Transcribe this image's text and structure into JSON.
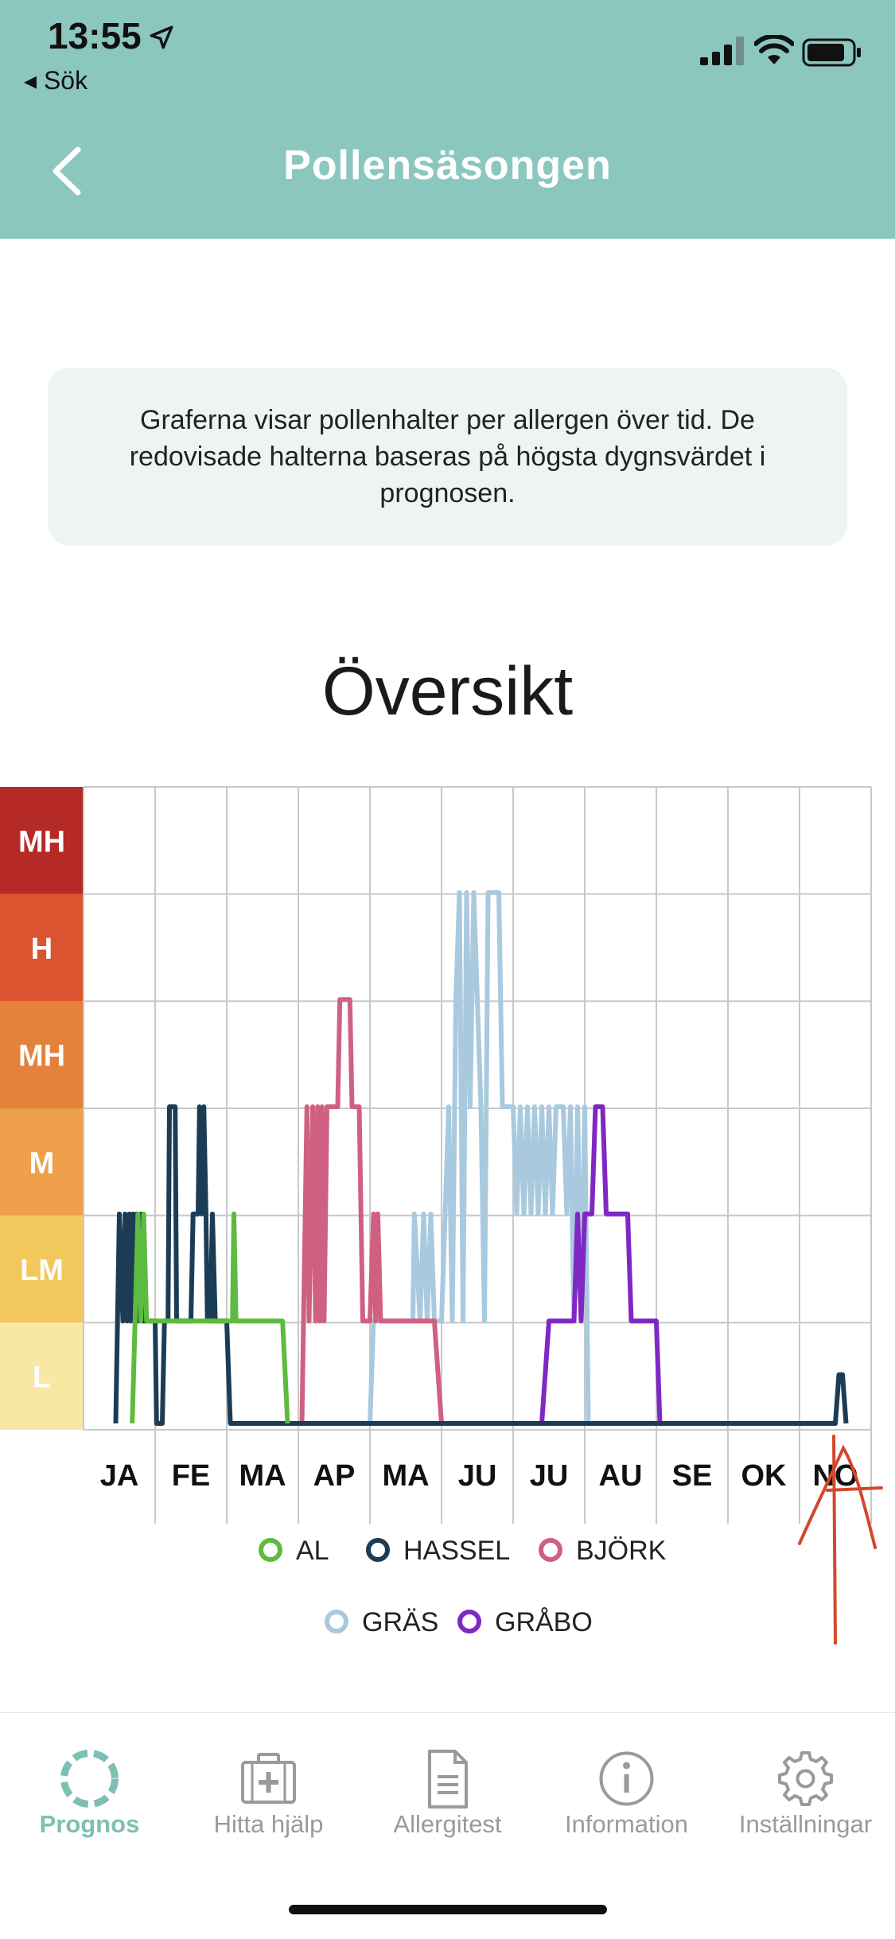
{
  "status_bar": {
    "time": "13:55",
    "back_app": "◂ Sök"
  },
  "header": {
    "title": "Pollensäsongen"
  },
  "info": {
    "text": "Graferna visar pollenhalter per allergen över tid. De redovisade halterna baseras på högsta dygnsvärdet i prognosen."
  },
  "section": {
    "title": "Översikt"
  },
  "chart_data": {
    "type": "line",
    "levels": [
      "L",
      "LM",
      "M",
      "MH",
      "H",
      "MH"
    ],
    "level_colors": [
      "#f9e7a4",
      "#f2c75c",
      "#eea04a",
      "#e4813a",
      "#d9542f",
      "#b52a26"
    ],
    "x_ticks": [
      "JA",
      "FE",
      "MA",
      "AP",
      "MA",
      "JU",
      "JU",
      "AU",
      "SE",
      "OK",
      "NO"
    ],
    "y_range": [
      0,
      6
    ],
    "grid": true,
    "legend_position": "bottom",
    "series": [
      {
        "name": "AL",
        "color": "#5dbb3f",
        "points": [
          [
            0.68,
            0
          ],
          [
            0.72,
            1
          ],
          [
            0.76,
            2
          ],
          [
            0.8,
            1
          ],
          [
            0.84,
            2
          ],
          [
            0.88,
            1
          ],
          [
            1.0,
            1
          ],
          [
            1.05,
            1
          ],
          [
            2.08,
            1
          ],
          [
            2.1,
            2
          ],
          [
            2.13,
            1
          ],
          [
            2.78,
            1
          ],
          [
            2.85,
            0
          ]
        ]
      },
      {
        "name": "HASSEL",
        "color": "#1b3c55",
        "points": [
          [
            0.45,
            0
          ],
          [
            0.5,
            2
          ],
          [
            0.55,
            1
          ],
          [
            0.58,
            2
          ],
          [
            0.61,
            1
          ],
          [
            0.64,
            2
          ],
          [
            0.66,
            1
          ],
          [
            0.69,
            2
          ],
          [
            0.71,
            1
          ],
          [
            0.74,
            2
          ],
          [
            0.77,
            1
          ],
          [
            0.8,
            2
          ],
          [
            0.83,
            1
          ],
          [
            0.88,
            1
          ],
          [
            1.0,
            1
          ],
          [
            1.02,
            0
          ],
          [
            1.1,
            0
          ],
          [
            1.13,
            1
          ],
          [
            1.18,
            1
          ],
          [
            1.2,
            3
          ],
          [
            1.28,
            3
          ],
          [
            1.3,
            1
          ],
          [
            1.5,
            1
          ],
          [
            1.53,
            2
          ],
          [
            1.6,
            2
          ],
          [
            1.62,
            3
          ],
          [
            1.65,
            2
          ],
          [
            1.68,
            3
          ],
          [
            1.71,
            2
          ],
          [
            1.73,
            1
          ],
          [
            1.77,
            1
          ],
          [
            1.8,
            2
          ],
          [
            1.84,
            1
          ],
          [
            2.0,
            1
          ],
          [
            2.05,
            0
          ],
          [
            2.3,
            0
          ],
          [
            5.0,
            0
          ],
          [
            10.5,
            0
          ],
          [
            10.55,
            0.5
          ],
          [
            10.6,
            0.5
          ],
          [
            10.65,
            0
          ]
        ]
      },
      {
        "name": "BJÖRK",
        "color": "#d06081",
        "points": [
          [
            3.05,
            0
          ],
          [
            3.12,
            3
          ],
          [
            3.15,
            1
          ],
          [
            3.2,
            3
          ],
          [
            3.24,
            1
          ],
          [
            3.27,
            3
          ],
          [
            3.3,
            1
          ],
          [
            3.33,
            3
          ],
          [
            3.36,
            1
          ],
          [
            3.4,
            3
          ],
          [
            3.55,
            3
          ],
          [
            3.58,
            4
          ],
          [
            3.72,
            4
          ],
          [
            3.75,
            3
          ],
          [
            3.85,
            3
          ],
          [
            3.9,
            1
          ],
          [
            4.0,
            1
          ],
          [
            4.05,
            2
          ],
          [
            4.08,
            1
          ],
          [
            4.11,
            2
          ],
          [
            4.15,
            1
          ],
          [
            4.3,
            1
          ],
          [
            4.5,
            1
          ],
          [
            4.9,
            1
          ],
          [
            5.0,
            0
          ]
        ]
      },
      {
        "name": "GRÄS",
        "color": "#a9c9df",
        "points": [
          [
            3.4,
            0
          ],
          [
            3.5,
            0
          ],
          [
            3.55,
            0
          ],
          [
            4.0,
            0
          ],
          [
            4.05,
            1
          ],
          [
            4.3,
            1
          ],
          [
            4.35,
            1
          ],
          [
            4.6,
            1
          ],
          [
            4.62,
            2
          ],
          [
            4.7,
            1
          ],
          [
            4.75,
            2
          ],
          [
            4.8,
            1
          ],
          [
            4.85,
            2
          ],
          [
            4.9,
            1
          ],
          [
            5.0,
            1
          ],
          [
            5.05,
            2
          ],
          [
            5.1,
            3
          ],
          [
            5.15,
            1
          ],
          [
            5.2,
            4
          ],
          [
            5.25,
            5
          ],
          [
            5.3,
            1
          ],
          [
            5.35,
            5
          ],
          [
            5.4,
            3
          ],
          [
            5.45,
            5
          ],
          [
            5.5,
            4
          ],
          [
            5.55,
            3
          ],
          [
            5.6,
            1
          ],
          [
            5.65,
            5
          ],
          [
            5.8,
            5
          ],
          [
            5.85,
            3
          ],
          [
            6.0,
            3
          ],
          [
            6.05,
            2
          ],
          [
            6.1,
            3
          ],
          [
            6.15,
            2
          ],
          [
            6.2,
            3
          ],
          [
            6.25,
            2
          ],
          [
            6.3,
            3
          ],
          [
            6.35,
            2
          ],
          [
            6.4,
            3
          ],
          [
            6.45,
            2
          ],
          [
            6.5,
            3
          ],
          [
            6.55,
            2
          ],
          [
            6.6,
            3
          ],
          [
            6.7,
            3
          ],
          [
            6.75,
            2
          ],
          [
            6.8,
            3
          ],
          [
            6.85,
            1
          ],
          [
            6.9,
            3
          ],
          [
            6.95,
            1
          ],
          [
            7.0,
            3
          ],
          [
            7.05,
            0
          ]
        ]
      },
      {
        "name": "GRÅBO",
        "color": "#7f28c4",
        "points": [
          [
            6.4,
            0
          ],
          [
            6.5,
            1
          ],
          [
            6.85,
            1
          ],
          [
            6.9,
            2
          ],
          [
            6.95,
            1
          ],
          [
            7.0,
            2
          ],
          [
            7.1,
            2
          ],
          [
            7.15,
            3
          ],
          [
            7.25,
            3
          ],
          [
            7.3,
            2
          ],
          [
            7.6,
            2
          ],
          [
            7.65,
            1
          ],
          [
            8.0,
            1
          ],
          [
            8.05,
            0
          ]
        ]
      }
    ]
  },
  "legend": [
    {
      "label": "AL",
      "color": "#5dbb3f"
    },
    {
      "label": "HASSEL",
      "color": "#1b3c55"
    },
    {
      "label": "BJÖRK",
      "color": "#d06081"
    },
    {
      "label": "GRÄS",
      "color": "#a9c9df"
    },
    {
      "label": "GRÅBO",
      "color": "#7f28c4"
    }
  ],
  "tabbar": {
    "items": [
      {
        "label": "Prognos",
        "icon": "prognos-ring-icon",
        "active": true
      },
      {
        "label": "Hitta hjälp",
        "icon": "medical-kit-icon",
        "active": false
      },
      {
        "label": "Allergitest",
        "icon": "document-icon",
        "active": false
      },
      {
        "label": "Information",
        "icon": "info-icon",
        "active": false
      },
      {
        "label": "Inställningar",
        "icon": "gear-icon",
        "active": false
      }
    ]
  },
  "colors": {
    "header_bg": "#8bc7be",
    "accent": "#7dbfb3",
    "annotation": "#d2492b"
  }
}
